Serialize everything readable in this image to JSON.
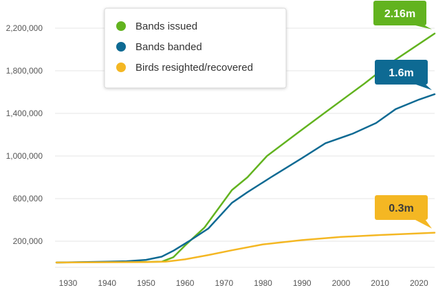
{
  "chart_data": {
    "type": "line",
    "xlabel": "",
    "ylabel": "",
    "xlim": [
      1927,
      2024
    ],
    "ylim": [
      0,
      2400000
    ],
    "x_ticks": [
      1930,
      1940,
      1950,
      1960,
      1970,
      1980,
      1990,
      2000,
      2010,
      2020
    ],
    "y_ticks": [
      200000,
      600000,
      1000000,
      1400000,
      1800000,
      2200000
    ],
    "y_tick_labels": [
      "200,000",
      "600,000",
      "1,000,000",
      "1,400,000",
      "1,800,000",
      "2,200,000"
    ],
    "grid": true,
    "legend_position": "top-left",
    "series": [
      {
        "name": "Bands issued",
        "color": "#62b31f",
        "callout": "2.16m",
        "points": [
          [
            1927,
            0
          ],
          [
            1940,
            5000
          ],
          [
            1950,
            6000
          ],
          [
            1954,
            8000
          ],
          [
            1957,
            50000
          ],
          [
            1960,
            160000
          ],
          [
            1965,
            330000
          ],
          [
            1972,
            680000
          ],
          [
            1976,
            800000
          ],
          [
            1981,
            1000000
          ],
          [
            1989,
            1220000
          ],
          [
            1996,
            1410000
          ],
          [
            2006,
            1680000
          ],
          [
            2013,
            1880000
          ],
          [
            2024,
            2150000
          ]
        ]
      },
      {
        "name": "Bands banded",
        "color": "#0e6a93",
        "callout": "1.6m",
        "points": [
          [
            1927,
            0
          ],
          [
            1940,
            8000
          ],
          [
            1945,
            12000
          ],
          [
            1950,
            25000
          ],
          [
            1954,
            55000
          ],
          [
            1957,
            110000
          ],
          [
            1961,
            200000
          ],
          [
            1966,
            320000
          ],
          [
            1972,
            560000
          ],
          [
            1976,
            660000
          ],
          [
            1982,
            800000
          ],
          [
            1990,
            980000
          ],
          [
            1996,
            1120000
          ],
          [
            2003,
            1210000
          ],
          [
            2009,
            1310000
          ],
          [
            2014,
            1440000
          ],
          [
            2020,
            1530000
          ],
          [
            2024,
            1580000
          ]
        ]
      },
      {
        "name": "Birds resighted/recovered",
        "color": "#f4b723",
        "callout": "0.3m",
        "points": [
          [
            1927,
            0
          ],
          [
            1950,
            4000
          ],
          [
            1955,
            8000
          ],
          [
            1960,
            30000
          ],
          [
            1966,
            70000
          ],
          [
            1972,
            115000
          ],
          [
            1980,
            170000
          ],
          [
            1990,
            210000
          ],
          [
            2000,
            240000
          ],
          [
            2010,
            258000
          ],
          [
            2024,
            280000
          ]
        ]
      }
    ]
  }
}
